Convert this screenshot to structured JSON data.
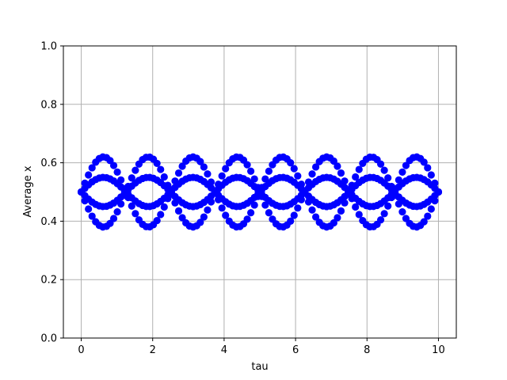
{
  "chart_data": {
    "type": "scatter",
    "title": "",
    "xlabel": "tau",
    "ylabel": "Average x",
    "xlim": [
      -0.5,
      10.5
    ],
    "ylim": [
      0.0,
      1.0
    ],
    "xticks": [
      0,
      2,
      4,
      6,
      8,
      10
    ],
    "xtick_labels": [
      "0",
      "2",
      "4",
      "6",
      "8",
      "10"
    ],
    "yticks": [
      0.0,
      0.2,
      0.4,
      0.6,
      0.8,
      1.0
    ],
    "ytick_labels": [
      "0.0",
      "0.2",
      "0.4",
      "0.6",
      "0.8",
      "1.0"
    ],
    "grid": true,
    "marker_color": "#0000ff",
    "series": [
      {
        "curves": [
          {
            "type": "sin",
            "amplitude": 0.12,
            "period": 2.5,
            "phase": 0.0,
            "offset": 0.5
          },
          {
            "type": "sin",
            "amplitude": 0.12,
            "period": 2.5,
            "phase": 1.25,
            "offset": 0.5
          },
          {
            "type": "sin",
            "amplitude": 0.05,
            "period": 2.5,
            "phase": 0.0,
            "offset": 0.5
          },
          {
            "type": "sin",
            "amplitude": 0.05,
            "period": 2.5,
            "phase": 1.25,
            "offset": 0.5
          }
        ],
        "x_start": 0.0,
        "x_end": 10.0,
        "samples": 100
      }
    ]
  }
}
